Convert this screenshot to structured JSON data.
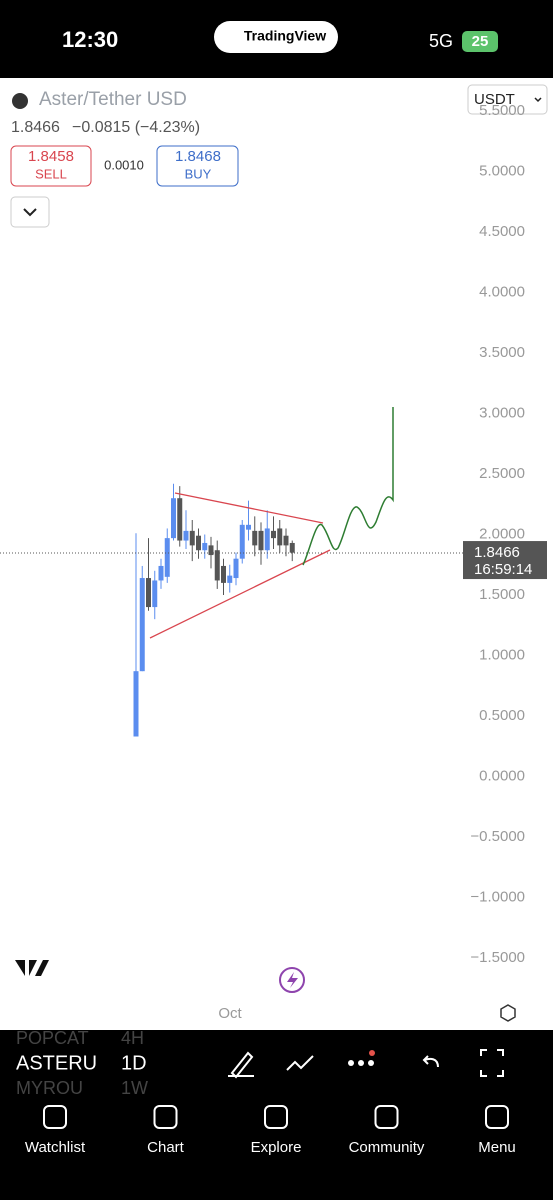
{
  "status_bar": {
    "time": "12:30",
    "app": "TradingView",
    "network": "5G",
    "battery": "25"
  },
  "header": {
    "symbol": "Aster/Tether USD",
    "price": "1.8466",
    "change": "−0.0815 (−4.23%)",
    "sell_price": "1.8458",
    "sell": "SELL",
    "spread": "0.0010",
    "buy_price": "1.8468",
    "buy": "BUY",
    "currency": "USDT"
  },
  "chart_data": {
    "type": "candlestick",
    "up_color": "#5b8def",
    "down_color": "#555555",
    "open": [
      0.33,
      0.87,
      1.64,
      1.4,
      1.62,
      1.65,
      1.97,
      2.3,
      1.95,
      2.03,
      1.99,
      1.87,
      1.91,
      1.87,
      1.74,
      1.6,
      1.64,
      1.8,
      2.04,
      2.03,
      2.03,
      1.87,
      2.03,
      2.05,
      1.99,
      1.93
    ],
    "high": [
      2.01,
      1.74,
      1.97,
      1.7,
      1.8,
      2.05,
      2.42,
      2.4,
      2.2,
      2.12,
      2.05,
      2.0,
      1.98,
      1.95,
      1.8,
      1.75,
      1.85,
      2.12,
      2.28,
      2.15,
      2.1,
      2.2,
      2.15,
      2.12,
      2.05,
      1.95
    ],
    "low": [
      0.33,
      0.87,
      1.37,
      1.3,
      1.55,
      1.6,
      1.95,
      1.9,
      1.88,
      1.78,
      1.8,
      1.8,
      1.72,
      1.55,
      1.5,
      1.52,
      1.58,
      1.76,
      1.95,
      1.82,
      1.75,
      1.8,
      1.88,
      1.85,
      1.82,
      1.78
    ],
    "close": [
      0.87,
      1.64,
      1.4,
      1.62,
      1.74,
      1.97,
      2.3,
      1.95,
      2.03,
      1.91,
      1.87,
      1.93,
      1.83,
      1.62,
      1.6,
      1.66,
      1.8,
      2.08,
      2.08,
      1.91,
      1.87,
      2.05,
      1.97,
      1.91,
      1.91,
      1.85
    ],
    "ylim": [
      -1.65,
      5.65
    ],
    "yticks": [
      {
        "value": 5.5,
        "label": "5.5000"
      },
      {
        "value": 5,
        "label": "5.0000"
      },
      {
        "value": 4.5,
        "label": "4.5000"
      },
      {
        "value": 4,
        "label": "4.0000"
      },
      {
        "value": 3.5,
        "label": "3.5000"
      },
      {
        "value": 3,
        "label": "3.0000"
      },
      {
        "value": 2.5,
        "label": "2.5000"
      },
      {
        "value": 2,
        "label": "2.0000"
      },
      {
        "value": 1.5,
        "label": "1.5000"
      },
      {
        "value": 1,
        "label": "1.0000"
      },
      {
        "value": 0.5,
        "label": "0.5000"
      },
      {
        "value": 0,
        "label": "0.0000"
      },
      {
        "value": -0.5,
        "label": "−0.5000"
      },
      {
        "value": -1,
        "label": "−1.0000"
      },
      {
        "value": -1.5,
        "label": "−1.5000"
      }
    ],
    "last_price": {
      "value": 1.8466,
      "label": "1.8466"
    },
    "countdown": "16:59:14",
    "x_label": "Oct"
  },
  "toolbar": {
    "symbols": [
      "POPCAT",
      "ASTERU",
      "MYROU"
    ],
    "intervals": [
      "4H",
      "1D",
      "1W"
    ]
  },
  "tabs": [
    "Watchlist",
    "Chart",
    "Explore",
    "Community",
    "Menu"
  ]
}
